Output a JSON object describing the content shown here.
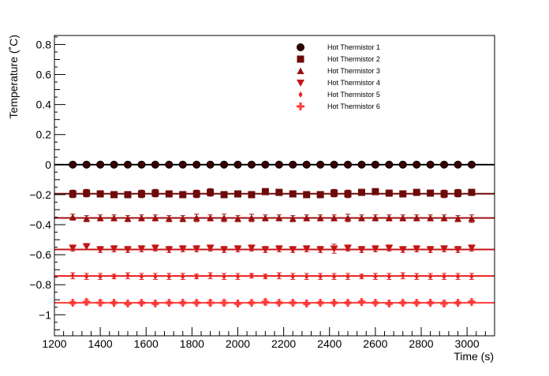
{
  "chart_data": {
    "type": "scatter",
    "xlabel": "Time (s)",
    "ylabel": "Temperature (˚C)",
    "xlim": [
      1200,
      3120
    ],
    "ylim": [
      -1.14,
      0.86
    ],
    "x_ticks": [
      1200,
      1400,
      1600,
      1800,
      2000,
      2200,
      2400,
      2600,
      2800,
      3000
    ],
    "y_ticks": [
      -1,
      -0.8,
      -0.6,
      -0.4,
      -0.2,
      0,
      0.2,
      0.4,
      0.6,
      0.8
    ],
    "x_tick_labels": [
      "1200",
      "1400",
      "1600",
      "1800",
      "2000",
      "2200",
      "2400",
      "2600",
      "2800",
      "3000"
    ],
    "y_tick_labels": [
      "−1",
      "−0.8",
      "−0.6",
      "−0.4",
      "−0.2",
      "0",
      "0.2",
      "0.4",
      "0.6",
      "0.8"
    ],
    "legend_position": "top-right",
    "grid": false,
    "x": [
      1280,
      1340,
      1400,
      1460,
      1520,
      1580,
      1640,
      1700,
      1760,
      1820,
      1880,
      1940,
      2000,
      2060,
      2120,
      2180,
      2240,
      2300,
      2360,
      2420,
      2480,
      2540,
      2600,
      2660,
      2720,
      2780,
      2840,
      2900,
      2960,
      3020
    ],
    "series": [
      {
        "name": "Hot Thermistor 1",
        "marker": "circle",
        "color": "#3a0000",
        "fit": 0.0,
        "values": [
          0,
          0,
          0,
          0,
          0,
          0,
          0,
          0,
          0,
          0,
          0,
          0,
          0,
          0,
          0,
          0,
          0,
          0,
          0,
          0,
          0,
          0,
          0,
          0,
          0,
          0,
          0,
          0,
          0,
          0
        ],
        "errors": [
          0,
          0,
          0,
          0,
          0,
          0,
          0,
          0,
          0,
          0,
          0,
          0,
          0,
          0,
          0,
          0,
          0,
          0,
          0,
          0,
          0,
          0,
          0,
          0,
          0,
          0,
          0,
          0,
          0,
          0
        ]
      },
      {
        "name": "Hot Thermistor 2",
        "marker": "square",
        "color": "#6e0a0a",
        "fit": -0.194,
        "values": [
          -0.195,
          -0.19,
          -0.195,
          -0.2,
          -0.2,
          -0.195,
          -0.19,
          -0.195,
          -0.2,
          -0.195,
          -0.185,
          -0.2,
          -0.195,
          -0.2,
          -0.18,
          -0.185,
          -0.195,
          -0.2,
          -0.2,
          -0.19,
          -0.195,
          -0.185,
          -0.18,
          -0.19,
          -0.195,
          -0.185,
          -0.19,
          -0.195,
          -0.19,
          -0.185
        ],
        "errors": [
          0.025,
          0.025,
          0.02,
          0.02,
          0.02,
          0.025,
          0.025,
          0.02,
          0.02,
          0.025,
          0.025,
          0.02,
          0.02,
          0.01,
          0.02,
          0.02,
          0.02,
          0.015,
          0.02,
          0.025,
          0.025,
          0.02,
          0.02,
          0.02,
          0.02,
          0.02,
          0.02,
          0.025,
          0.025,
          0.02
        ]
      },
      {
        "name": "Hot Thermistor 3",
        "marker": "triangle-up",
        "color": "#9b1010",
        "fit": -0.355,
        "values": [
          -0.35,
          -0.36,
          -0.355,
          -0.355,
          -0.36,
          -0.355,
          -0.355,
          -0.36,
          -0.36,
          -0.355,
          -0.355,
          -0.355,
          -0.36,
          -0.355,
          -0.355,
          -0.355,
          -0.36,
          -0.355,
          -0.355,
          -0.355,
          -0.355,
          -0.355,
          -0.355,
          -0.355,
          -0.355,
          -0.355,
          -0.355,
          -0.355,
          -0.36,
          -0.36
        ],
        "errors": [
          0.02,
          0.02,
          0.02,
          0.02,
          0.02,
          0.02,
          0.02,
          0.02,
          0.02,
          0.025,
          0.02,
          0.025,
          0.02,
          0.025,
          0.02,
          0.02,
          0.02,
          0.02,
          0.02,
          0.02,
          0.025,
          0.02,
          0.02,
          0.02,
          0.02,
          0.02,
          0.02,
          0.02,
          0.02,
          0.025
        ]
      },
      {
        "name": "Hot Thermistor 4",
        "marker": "triangle-down",
        "color": "#c41616",
        "fit": -0.565,
        "values": [
          -0.555,
          -0.545,
          -0.565,
          -0.56,
          -0.565,
          -0.56,
          -0.555,
          -0.565,
          -0.56,
          -0.56,
          -0.555,
          -0.565,
          -0.56,
          -0.555,
          -0.565,
          -0.56,
          -0.565,
          -0.56,
          -0.565,
          -0.56,
          -0.555,
          -0.565,
          -0.56,
          -0.555,
          -0.565,
          -0.56,
          -0.565,
          -0.56,
          -0.565,
          -0.555
        ],
        "errors": [
          0.02,
          0.02,
          0.02,
          0.02,
          0.02,
          0.02,
          0.02,
          0.02,
          0.02,
          0.02,
          0.02,
          0.02,
          0.02,
          0.02,
          0.02,
          0.02,
          0.02,
          0.02,
          0.02,
          0.03,
          0.02,
          0.02,
          0.02,
          0.02,
          0.02,
          0.02,
          0.02,
          0.02,
          0.02,
          0.02
        ]
      },
      {
        "name": "Hot Thermistor 5",
        "marker": "diamond",
        "color": "#e81e1e",
        "fit": -0.742,
        "values": [
          -0.74,
          -0.745,
          -0.745,
          -0.745,
          -0.74,
          -0.745,
          -0.745,
          -0.745,
          -0.745,
          -0.745,
          -0.74,
          -0.745,
          -0.745,
          -0.74,
          -0.745,
          -0.74,
          -0.745,
          -0.745,
          -0.745,
          -0.745,
          -0.745,
          -0.745,
          -0.745,
          -0.745,
          -0.74,
          -0.745,
          -0.745,
          -0.745,
          -0.745,
          -0.745
        ],
        "errors": [
          0.02,
          0.02,
          0.02,
          0.015,
          0.02,
          0.02,
          0.02,
          0.02,
          0.02,
          0.015,
          0.02,
          0.02,
          0.02,
          0.015,
          0.015,
          0.02,
          0.02,
          0.02,
          0.02,
          0.02,
          0.02,
          0.015,
          0.02,
          0.02,
          0.02,
          0.02,
          0.02,
          0.02,
          0.02,
          0.02
        ]
      },
      {
        "name": "Hot Thermistor 6",
        "marker": "cross",
        "color": "#ff3a3a",
        "fit": -0.92,
        "values": [
          -0.92,
          -0.915,
          -0.92,
          -0.92,
          -0.925,
          -0.92,
          -0.925,
          -0.92,
          -0.92,
          -0.92,
          -0.92,
          -0.92,
          -0.925,
          -0.92,
          -0.915,
          -0.92,
          -0.92,
          -0.925,
          -0.92,
          -0.92,
          -0.92,
          -0.915,
          -0.92,
          -0.925,
          -0.92,
          -0.92,
          -0.92,
          -0.925,
          -0.92,
          -0.915
        ],
        "errors": [
          0.01,
          0.015,
          0.015,
          0.01,
          0.01,
          0.01,
          0.01,
          0.01,
          0.01,
          0.01,
          0.015,
          0.015,
          0.01,
          0.01,
          0.015,
          0.01,
          0.01,
          0.01,
          0.01,
          0.01,
          0.01,
          0.01,
          0.01,
          0.01,
          0.01,
          0.01,
          0.01,
          0.015,
          0.01,
          0.01
        ]
      }
    ]
  }
}
